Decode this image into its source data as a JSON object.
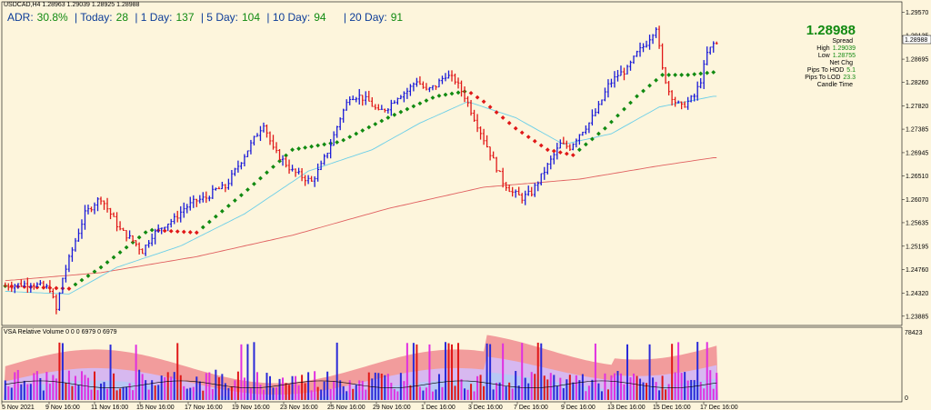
{
  "header": {
    "symbol_line": "USDCAD,H4  1.28963 1.29039 1.28925 1.28988",
    "adr": [
      {
        "label": "ADR:",
        "value": "30.8%"
      },
      {
        "label": "| Today:",
        "value": "28"
      },
      {
        "label": "| 1 Day:",
        "value": "137"
      },
      {
        "label": "| 5 Day:",
        "value": "104"
      },
      {
        "label": "| 10 Day:",
        "value": "94"
      },
      {
        "label": "| 20 Day:",
        "value": "91"
      }
    ]
  },
  "info_panel": {
    "price": "1.28988",
    "spread_label": "Spread",
    "spread_value": "",
    "high_label": "High",
    "high_value": "1.29039",
    "low_label": "Low",
    "low_value": "1.28755",
    "net_chg_label": "Net Chg",
    "net_chg_value": "",
    "pips_hod_label": "Pips To HOD",
    "pips_hod_value": "5.1",
    "pips_lod_label": "Pips To LOD",
    "pips_lod_value": "23.3",
    "candle_time_label": "Candle Time",
    "candle_time_value": ""
  },
  "vsa": {
    "title": "VSA Relative Volume 0 0 0 6979 0 6979",
    "max_label": "78423",
    "min_label": "0"
  },
  "colors": {
    "background": "#fdf5dc",
    "bull_bar": "#1a1ad8",
    "bear_bar": "#e01818",
    "ma_up": "#118a11",
    "ma_down": "#e01818",
    "ma_light": "#6ccfe8",
    "ma_slow": "#e06060"
  },
  "chart_data": {
    "type": "ohlc",
    "symbol": "USDCAD",
    "timeframe": "H4",
    "y_ticks": [
      "1.29570",
      "1.29135",
      "1.28695",
      "1.28260",
      "1.27820",
      "1.27385",
      "1.26945",
      "1.26510",
      "1.26070",
      "1.25635",
      "1.25195",
      "1.24760",
      "1.24320",
      "1.23885"
    ],
    "ylim": [
      1.2378,
      1.297
    ],
    "current_price": "1.28988",
    "x_labels": [
      "5 Nov 2021",
      "9 Nov 16:00",
      "11 Nov 16:00",
      "15 Nov 16:00",
      "17 Nov 16:00",
      "19 Nov 16:00",
      "23 Nov 16:00",
      "25 Nov 16:00",
      "29 Nov 16:00",
      "1 Dec 16:00",
      "3 Dec 16:00",
      "7 Dec 16:00",
      "9 Dec 16:00",
      "13 Dec 16:00",
      "15 Dec 16:00",
      "17 Dec 16:00"
    ],
    "close_path": [
      [
        0,
        1.2445
      ],
      [
        8,
        1.245
      ],
      [
        14,
        1.244
      ],
      [
        16,
        1.24
      ],
      [
        18,
        1.246
      ],
      [
        22,
        1.253
      ],
      [
        25,
        1.258
      ],
      [
        28,
        1.26
      ],
      [
        30,
        1.261
      ],
      [
        33,
        1.258
      ],
      [
        36,
        1.255
      ],
      [
        40,
        1.253
      ],
      [
        43,
        1.251
      ],
      [
        46,
        1.254
      ],
      [
        50,
        1.256
      ],
      [
        53,
        1.257
      ],
      [
        56,
        1.259
      ],
      [
        60,
        1.2605
      ],
      [
        63,
        1.261
      ],
      [
        66,
        1.2625
      ],
      [
        69,
        1.263
      ],
      [
        72,
        1.266
      ],
      [
        75,
        1.269
      ],
      [
        78,
        1.272
      ],
      [
        81,
        1.275
      ],
      [
        84,
        1.27
      ],
      [
        87,
        1.268
      ],
      [
        90,
        1.266
      ],
      [
        93,
        1.265
      ],
      [
        96,
        1.264
      ],
      [
        99,
        1.267
      ],
      [
        102,
        1.271
      ],
      [
        105,
        1.276
      ],
      [
        108,
        1.28
      ],
      [
        111,
        1.28
      ],
      [
        114,
        1.279
      ],
      [
        117,
        1.277
      ],
      [
        120,
        1.278
      ],
      [
        123,
        1.28
      ],
      [
        126,
        1.281
      ],
      [
        129,
        1.283
      ],
      [
        132,
        1.281
      ],
      [
        135,
        1.282
      ],
      [
        138,
        1.284
      ],
      [
        141,
        1.283
      ],
      [
        144,
        1.28
      ],
      [
        147,
        1.276
      ],
      [
        150,
        1.272
      ],
      [
        153,
        1.268
      ],
      [
        156,
        1.264
      ],
      [
        159,
        1.262
      ],
      [
        162,
        1.261
      ],
      [
        165,
        1.262
      ],
      [
        168,
        1.265
      ],
      [
        171,
        1.268
      ],
      [
        174,
        1.271
      ],
      [
        177,
        1.2705
      ],
      [
        180,
        1.273
      ],
      [
        183,
        1.275
      ],
      [
        186,
        1.278
      ],
      [
        189,
        1.282
      ],
      [
        192,
        1.284
      ],
      [
        195,
        1.285
      ],
      [
        198,
        1.288
      ],
      [
        201,
        1.29
      ],
      [
        204,
        1.293
      ],
      [
        206,
        1.285
      ],
      [
        208,
        1.281
      ],
      [
        210,
        1.279
      ],
      [
        212,
        1.278
      ],
      [
        214,
        1.279
      ],
      [
        216,
        1.28
      ],
      [
        218,
        1.283
      ],
      [
        220,
        1.288
      ],
      [
        222,
        1.2898
      ]
    ],
    "ma_fast": [
      [
        0,
        1.2445
      ],
      [
        20,
        1.244
      ],
      [
        30,
        1.248
      ],
      [
        45,
        1.255
      ],
      [
        60,
        1.2545
      ],
      [
        75,
        1.262
      ],
      [
        90,
        1.27
      ],
      [
        105,
        1.2715
      ],
      [
        120,
        1.276
      ],
      [
        135,
        1.28
      ],
      [
        145,
        1.281
      ],
      [
        150,
        1.279
      ],
      [
        160,
        1.274
      ],
      [
        170,
        1.27
      ],
      [
        178,
        1.269
      ],
      [
        188,
        1.274
      ],
      [
        198,
        1.28
      ],
      [
        206,
        1.284
      ],
      [
        214,
        1.284
      ],
      [
        222,
        1.2845
      ]
    ],
    "ma_medium": [
      [
        0,
        1.2435
      ],
      [
        20,
        1.243
      ],
      [
        35,
        1.248
      ],
      [
        55,
        1.252
      ],
      [
        75,
        1.258
      ],
      [
        95,
        1.266
      ],
      [
        115,
        1.27
      ],
      [
        130,
        1.275
      ],
      [
        145,
        1.279
      ],
      [
        160,
        1.276
      ],
      [
        175,
        1.271
      ],
      [
        190,
        1.273
      ],
      [
        205,
        1.278
      ],
      [
        222,
        1.28
      ]
    ],
    "ma_slow": [
      [
        0,
        1.2455
      ],
      [
        30,
        1.247
      ],
      [
        60,
        1.25
      ],
      [
        90,
        1.254
      ],
      [
        120,
        1.259
      ],
      [
        150,
        1.263
      ],
      [
        180,
        1.2645
      ],
      [
        205,
        1.267
      ],
      [
        222,
        1.2685
      ]
    ],
    "bar_count": 224,
    "volume_max": 78423
  }
}
